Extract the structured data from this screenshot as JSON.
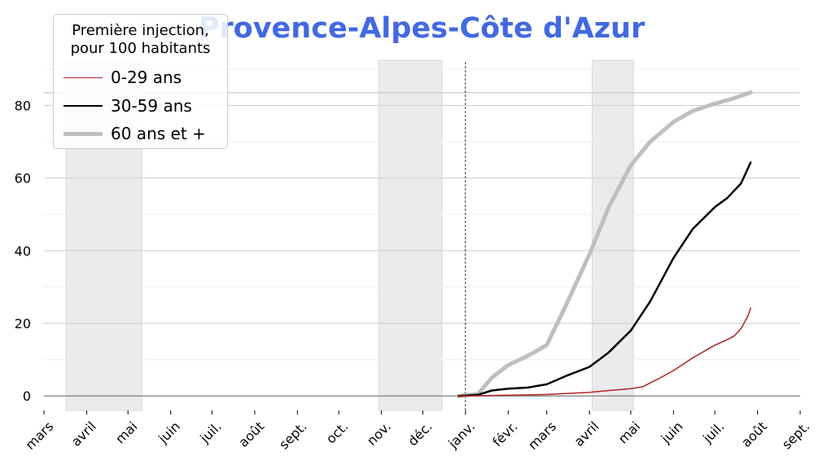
{
  "chart_data": {
    "type": "line",
    "title": "Provence-Alpes-Côte d'Azur",
    "legend_title": [
      "Première injection,",
      "pour 100 habitants"
    ],
    "legend_position": "top-left",
    "ylim": [
      -4,
      92
    ],
    "yticks": [
      0,
      20,
      40,
      60,
      80
    ],
    "xlim": [
      "2020-03-01",
      "2021-09-01"
    ],
    "xticks": [
      {
        "date": "2020-03-01",
        "label": "mars"
      },
      {
        "date": "2020-04-01",
        "label": "avril"
      },
      {
        "date": "2020-05-01",
        "label": "mai"
      },
      {
        "date": "2020-06-01",
        "label": "juin"
      },
      {
        "date": "2020-07-01",
        "label": "juil."
      },
      {
        "date": "2020-08-01",
        "label": "août"
      },
      {
        "date": "2020-09-01",
        "label": "sept."
      },
      {
        "date": "2020-10-01",
        "label": "oct."
      },
      {
        "date": "2020-11-01",
        "label": "nov."
      },
      {
        "date": "2020-12-01",
        "label": "déc."
      },
      {
        "date": "2021-01-01",
        "label": "janv."
      },
      {
        "date": "2021-02-01",
        "label": "févr."
      },
      {
        "date": "2021-03-01",
        "label": "mars"
      },
      {
        "date": "2021-04-01",
        "label": "avril"
      },
      {
        "date": "2021-05-01",
        "label": "mai"
      },
      {
        "date": "2021-06-01",
        "label": "juin"
      },
      {
        "date": "2021-07-01",
        "label": "juil."
      },
      {
        "date": "2021-08-01",
        "label": "août"
      },
      {
        "date": "2021-09-01",
        "label": "sept."
      }
    ],
    "grid": true,
    "reference_line_y": 83.5,
    "vertical_marker_date": "2021-01-01",
    "shaded_periods": [
      {
        "start": "2020-03-17",
        "end": "2020-05-11"
      },
      {
        "start": "2020-10-30",
        "end": "2020-12-15"
      },
      {
        "start": "2021-04-03",
        "end": "2021-05-03"
      }
    ],
    "series": [
      {
        "name": "0-29 ans",
        "color": "#b22222",
        "width": 1.5,
        "points": [
          [
            "2020-12-27",
            0.0
          ],
          [
            "2021-01-15",
            0.1
          ],
          [
            "2021-02-01",
            0.2
          ],
          [
            "2021-03-01",
            0.4
          ],
          [
            "2021-04-01",
            1.0
          ],
          [
            "2021-04-15",
            1.5
          ],
          [
            "2021-05-01",
            2.0
          ],
          [
            "2021-05-10",
            2.6
          ],
          [
            "2021-05-20",
            4.5
          ],
          [
            "2021-06-01",
            7.0
          ],
          [
            "2021-06-15",
            10.5
          ],
          [
            "2021-07-01",
            14.0
          ],
          [
            "2021-07-10",
            15.5
          ],
          [
            "2021-07-15",
            16.5
          ],
          [
            "2021-07-20",
            18.5
          ],
          [
            "2021-07-25",
            22.0
          ],
          [
            "2021-07-27",
            24.2
          ]
        ]
      },
      {
        "name": "30-59 ans",
        "color": "#000000",
        "width": 2.5,
        "points": [
          [
            "2020-12-27",
            0.0
          ],
          [
            "2021-01-10",
            0.3
          ],
          [
            "2021-01-20",
            1.5
          ],
          [
            "2021-02-01",
            2.0
          ],
          [
            "2021-02-15",
            2.3
          ],
          [
            "2021-03-01",
            3.2
          ],
          [
            "2021-03-15",
            5.5
          ],
          [
            "2021-04-01",
            8.0
          ],
          [
            "2021-04-15",
            12.0
          ],
          [
            "2021-05-01",
            18.0
          ],
          [
            "2021-05-15",
            26.0
          ],
          [
            "2021-06-01",
            38.0
          ],
          [
            "2021-06-15",
            46.0
          ],
          [
            "2021-07-01",
            52.0
          ],
          [
            "2021-07-10",
            54.5
          ],
          [
            "2021-07-20",
            58.5
          ],
          [
            "2021-07-27",
            64.3
          ]
        ]
      },
      {
        "name": "60 ans et +",
        "color": "#bfbfbf",
        "width": 5,
        "points": [
          [
            "2020-12-27",
            0.0
          ],
          [
            "2021-01-10",
            0.5
          ],
          [
            "2021-01-20",
            5.0
          ],
          [
            "2021-02-01",
            8.5
          ],
          [
            "2021-02-15",
            11.0
          ],
          [
            "2021-03-01",
            14.0
          ],
          [
            "2021-03-15",
            25.0
          ],
          [
            "2021-04-01",
            39.0
          ],
          [
            "2021-04-15",
            52.0
          ],
          [
            "2021-05-01",
            63.5
          ],
          [
            "2021-05-15",
            70.0
          ],
          [
            "2021-06-01",
            75.5
          ],
          [
            "2021-06-15",
            78.5
          ],
          [
            "2021-07-01",
            80.5
          ],
          [
            "2021-07-15",
            82.0
          ],
          [
            "2021-07-27",
            83.6
          ]
        ]
      }
    ]
  }
}
